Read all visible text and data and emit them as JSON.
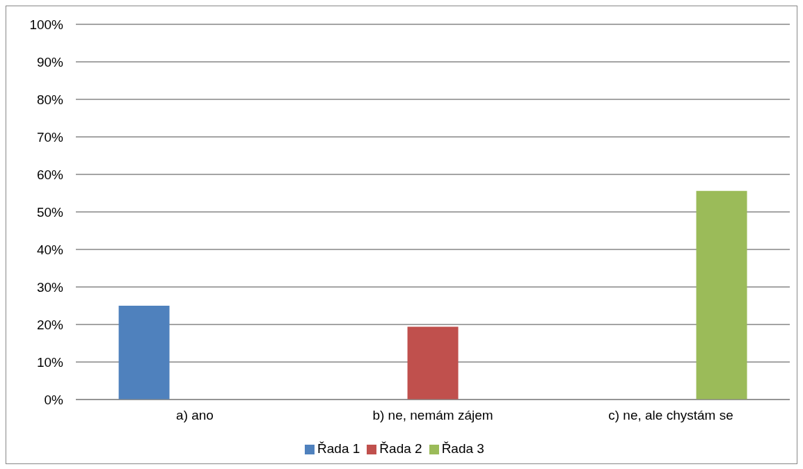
{
  "chart_data": {
    "type": "bar",
    "categories": [
      "a) ano",
      "b) ne, nemám zájem",
      "c) ne, ale chystám se"
    ],
    "series": [
      {
        "name": "Řada 1",
        "color": "#4f81bd",
        "values": [
          25,
          null,
          null
        ]
      },
      {
        "name": "Řada 2",
        "color": "#c0504d",
        "values": [
          null,
          19.4,
          null
        ]
      },
      {
        "name": "Řada 3",
        "color": "#9bbb59",
        "values": [
          null,
          null,
          55.6
        ]
      }
    ],
    "ylim": [
      0,
      100
    ],
    "yticks": [
      {
        "value": 0,
        "label": "0%"
      },
      {
        "value": 10,
        "label": "10%"
      },
      {
        "value": 20,
        "label": "20%"
      },
      {
        "value": 30,
        "label": "30%"
      },
      {
        "value": 40,
        "label": "40%"
      },
      {
        "value": 50,
        "label": "50%"
      },
      {
        "value": 60,
        "label": "60%"
      },
      {
        "value": 70,
        "label": "70%"
      },
      {
        "value": 80,
        "label": "80%"
      },
      {
        "value": 90,
        "label": "90%"
      },
      {
        "value": 100,
        "label": "100%"
      }
    ],
    "grid": "y",
    "legend": "bottom"
  }
}
